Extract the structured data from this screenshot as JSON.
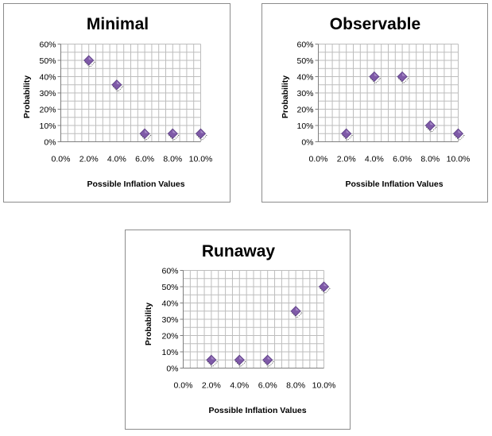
{
  "chart_data": [
    {
      "type": "scatter",
      "title": "Minimal",
      "xlabel": "Possible Inflation Values",
      "ylabel": "Probability",
      "x_ticks": [
        "0.0%",
        "2.0%",
        "4.0%",
        "6.0%",
        "8.0%",
        "10.0%"
      ],
      "y_ticks": [
        "0%",
        "10%",
        "20%",
        "30%",
        "40%",
        "50%",
        "60%"
      ],
      "xlim": [
        0,
        0.1
      ],
      "ylim": [
        0,
        0.6
      ],
      "grid": true,
      "marker_color": "#7f5aa8",
      "points": [
        {
          "x": 0.02,
          "y": 0.5
        },
        {
          "x": 0.04,
          "y": 0.35
        },
        {
          "x": 0.06,
          "y": 0.05
        },
        {
          "x": 0.08,
          "y": 0.05
        },
        {
          "x": 0.1,
          "y": 0.05
        }
      ]
    },
    {
      "type": "scatter",
      "title": "Observable",
      "xlabel": "Possible Inflation Values",
      "ylabel": "Probability",
      "x_ticks": [
        "0.0%",
        "2.0%",
        "4.0%",
        "6.0%",
        "8.0%",
        "10.0%"
      ],
      "y_ticks": [
        "0%",
        "10%",
        "20%",
        "30%",
        "40%",
        "50%",
        "60%"
      ],
      "xlim": [
        0,
        0.1
      ],
      "ylim": [
        0,
        0.6
      ],
      "grid": true,
      "marker_color": "#7f5aa8",
      "points": [
        {
          "x": 0.02,
          "y": 0.05
        },
        {
          "x": 0.04,
          "y": 0.4
        },
        {
          "x": 0.06,
          "y": 0.4
        },
        {
          "x": 0.08,
          "y": 0.1
        },
        {
          "x": 0.1,
          "y": 0.05
        }
      ]
    },
    {
      "type": "scatter",
      "title": "Runaway",
      "xlabel": "Possible Inflation Values",
      "ylabel": "Probability",
      "x_ticks": [
        "0.0%",
        "2.0%",
        "4.0%",
        "6.0%",
        "8.0%",
        "10.0%"
      ],
      "y_ticks": [
        "0%",
        "10%",
        "20%",
        "30%",
        "40%",
        "50%",
        "60%"
      ],
      "xlim": [
        0,
        0.1
      ],
      "ylim": [
        0,
        0.6
      ],
      "grid": true,
      "marker_color": "#7f5aa8",
      "points": [
        {
          "x": 0.02,
          "y": 0.05
        },
        {
          "x": 0.04,
          "y": 0.05
        },
        {
          "x": 0.06,
          "y": 0.05
        },
        {
          "x": 0.08,
          "y": 0.35
        },
        {
          "x": 0.1,
          "y": 0.5
        }
      ]
    }
  ]
}
